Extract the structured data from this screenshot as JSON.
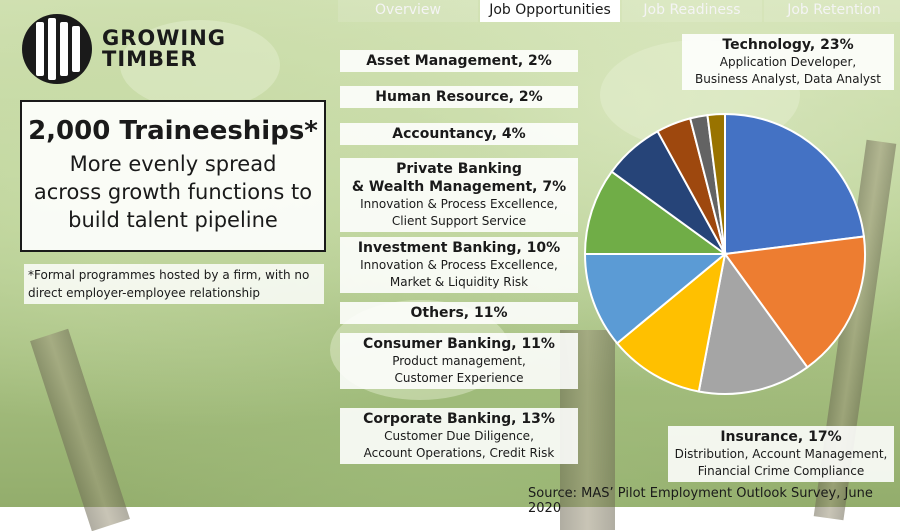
{
  "logo": {
    "line1": "GROWING",
    "line2": "TIMBER"
  },
  "tabs": [
    {
      "label": "Overview"
    },
    {
      "label": "Job Opportunities",
      "active": true
    },
    {
      "label": "Job Readiness"
    },
    {
      "label": "Job Retention"
    }
  ],
  "headline": {
    "title": "2,000 Traineeships*",
    "line1": "More evenly spread",
    "line2": "across growth functions to",
    "line3": "build talent pipeline"
  },
  "footnote": {
    "line1": "*Formal programmes hosted by a firm, with no",
    "line2": "direct employer-employee relationship"
  },
  "source": "Source: MAS’ Pilot Employment Outlook Survey, June 2020",
  "labels": {
    "asset_management": {
      "title": "Asset Management, 2%"
    },
    "human_resource": {
      "title": "Human Resource, 2%"
    },
    "accountancy": {
      "title": "Accountancy, 4%"
    },
    "private_banking": {
      "title1": "Private Banking",
      "title2": "& Wealth Management, 7%",
      "desc1": "Innovation & Process Excellence,",
      "desc2": "Client Support Service"
    },
    "investment_banking": {
      "title": "Investment Banking, 10%",
      "desc1": "Innovation & Process Excellence,",
      "desc2": "Market & Liquidity Risk"
    },
    "others": {
      "title": "Others, 11%"
    },
    "consumer_banking": {
      "title": "Consumer Banking, 11%",
      "desc1": "Product management,",
      "desc2": "Customer Experience"
    },
    "corporate_banking": {
      "title": "Corporate Banking, 13%",
      "desc1": "Customer Due Diligence,",
      "desc2": "Account Operations, Credit Risk"
    },
    "technology": {
      "title": "Technology, 23%",
      "desc1": "Application Developer,",
      "desc2": "Business Analyst, Data Analyst"
    },
    "insurance": {
      "title": "Insurance, 17%",
      "desc1": "Distribution, Account Management,",
      "desc2": "Financial Crime Compliance"
    }
  },
  "chart_data": {
    "type": "pie",
    "start": "12 o'clock",
    "direction": "clockwise",
    "slices": [
      {
        "label": "Technology",
        "value": 23,
        "color": "#4472c4"
      },
      {
        "label": "Insurance",
        "value": 17,
        "color": "#ed7d31"
      },
      {
        "label": "Corporate Banking",
        "value": 13,
        "color": "#a5a5a5"
      },
      {
        "label": "Consumer Banking",
        "value": 11,
        "color": "#ffc000"
      },
      {
        "label": "Others",
        "value": 11,
        "color": "#5b9bd5"
      },
      {
        "label": "Investment Banking",
        "value": 10,
        "color": "#70ad47"
      },
      {
        "label": "Private Banking & Wealth Management",
        "value": 7,
        "color": "#264478"
      },
      {
        "label": "Accountancy",
        "value": 4,
        "color": "#9e480e"
      },
      {
        "label": "Human Resource",
        "value": 2,
        "color": "#636363"
      },
      {
        "label": "Asset Management",
        "value": 2,
        "color": "#997300"
      }
    ]
  }
}
